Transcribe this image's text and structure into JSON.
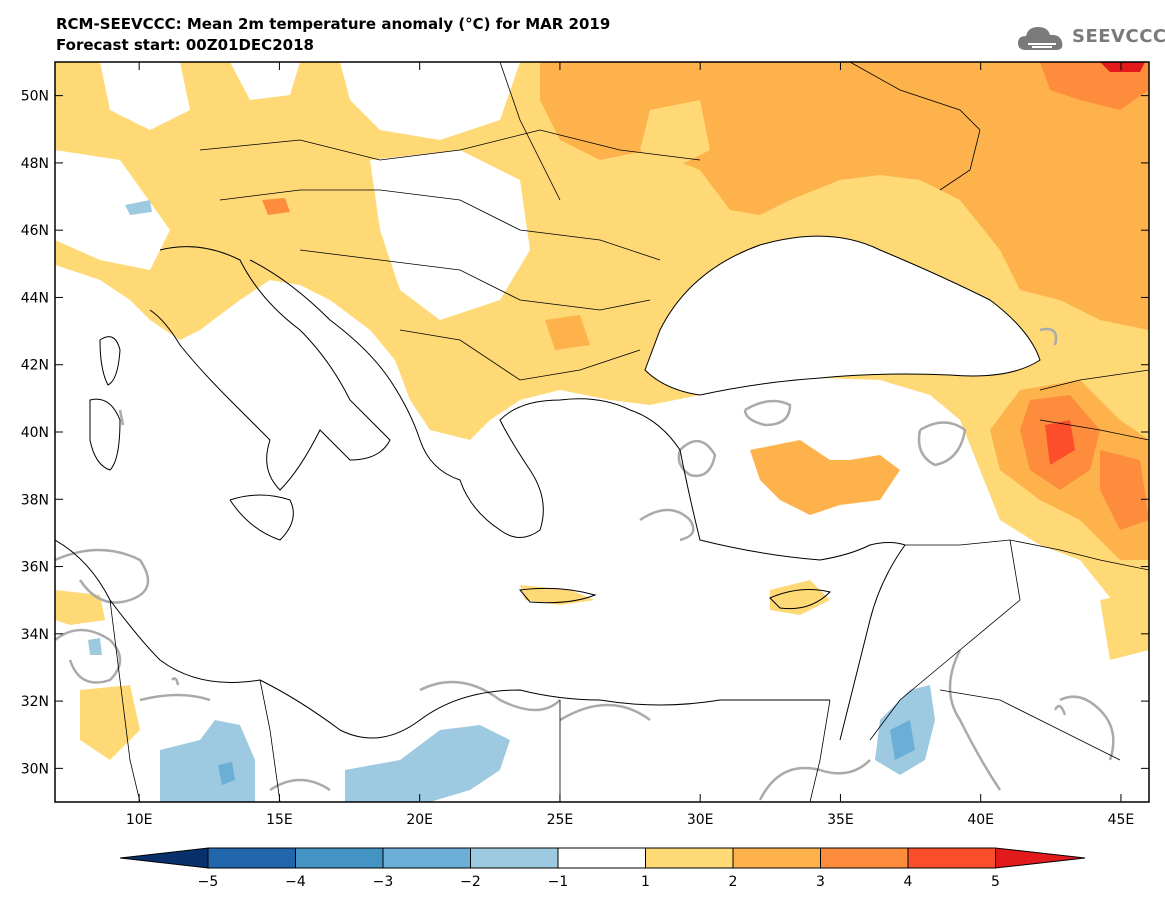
{
  "title_line1": "RCM-SEEVCCC: Mean 2m temperature anomaly (°C) for MAR 2019",
  "title_line2": "Forecast start: 00Z01DEC2018",
  "logo": {
    "text": "SEEVCCC",
    "icon": "cloud-icon"
  },
  "map": {
    "lon_range": [
      7,
      46
    ],
    "lat_range": [
      29,
      51
    ],
    "lon_ticks": [
      {
        "value": 10,
        "label": "10E"
      },
      {
        "value": 15,
        "label": "15E"
      },
      {
        "value": 20,
        "label": "20E"
      },
      {
        "value": 25,
        "label": "25E"
      },
      {
        "value": 30,
        "label": "30E"
      },
      {
        "value": 35,
        "label": "35E"
      },
      {
        "value": 40,
        "label": "40E"
      },
      {
        "value": 45,
        "label": "45E"
      }
    ],
    "lat_ticks": [
      {
        "value": 30,
        "label": "30N"
      },
      {
        "value": 32,
        "label": "32N"
      },
      {
        "value": 34,
        "label": "34N"
      },
      {
        "value": 36,
        "label": "36N"
      },
      {
        "value": 38,
        "label": "38N"
      },
      {
        "value": 40,
        "label": "40N"
      },
      {
        "value": 42,
        "label": "42N"
      },
      {
        "value": 44,
        "label": "44N"
      },
      {
        "value": 46,
        "label": "46N"
      },
      {
        "value": 48,
        "label": "48N"
      },
      {
        "value": 50,
        "label": "50N"
      }
    ]
  },
  "colorbar": {
    "labels": [
      "−5",
      "−4",
      "−3",
      "−2",
      "−1",
      "1",
      "2",
      "3",
      "4",
      "5"
    ],
    "colors": [
      "#08306b",
      "#2166ac",
      "#4393c3",
      "#6baed6",
      "#9ecae1",
      "#ffffff",
      "#fed976",
      "#feb24c",
      "#fd8d3c",
      "#fc4e2a",
      "#e31a1c"
    ]
  }
}
